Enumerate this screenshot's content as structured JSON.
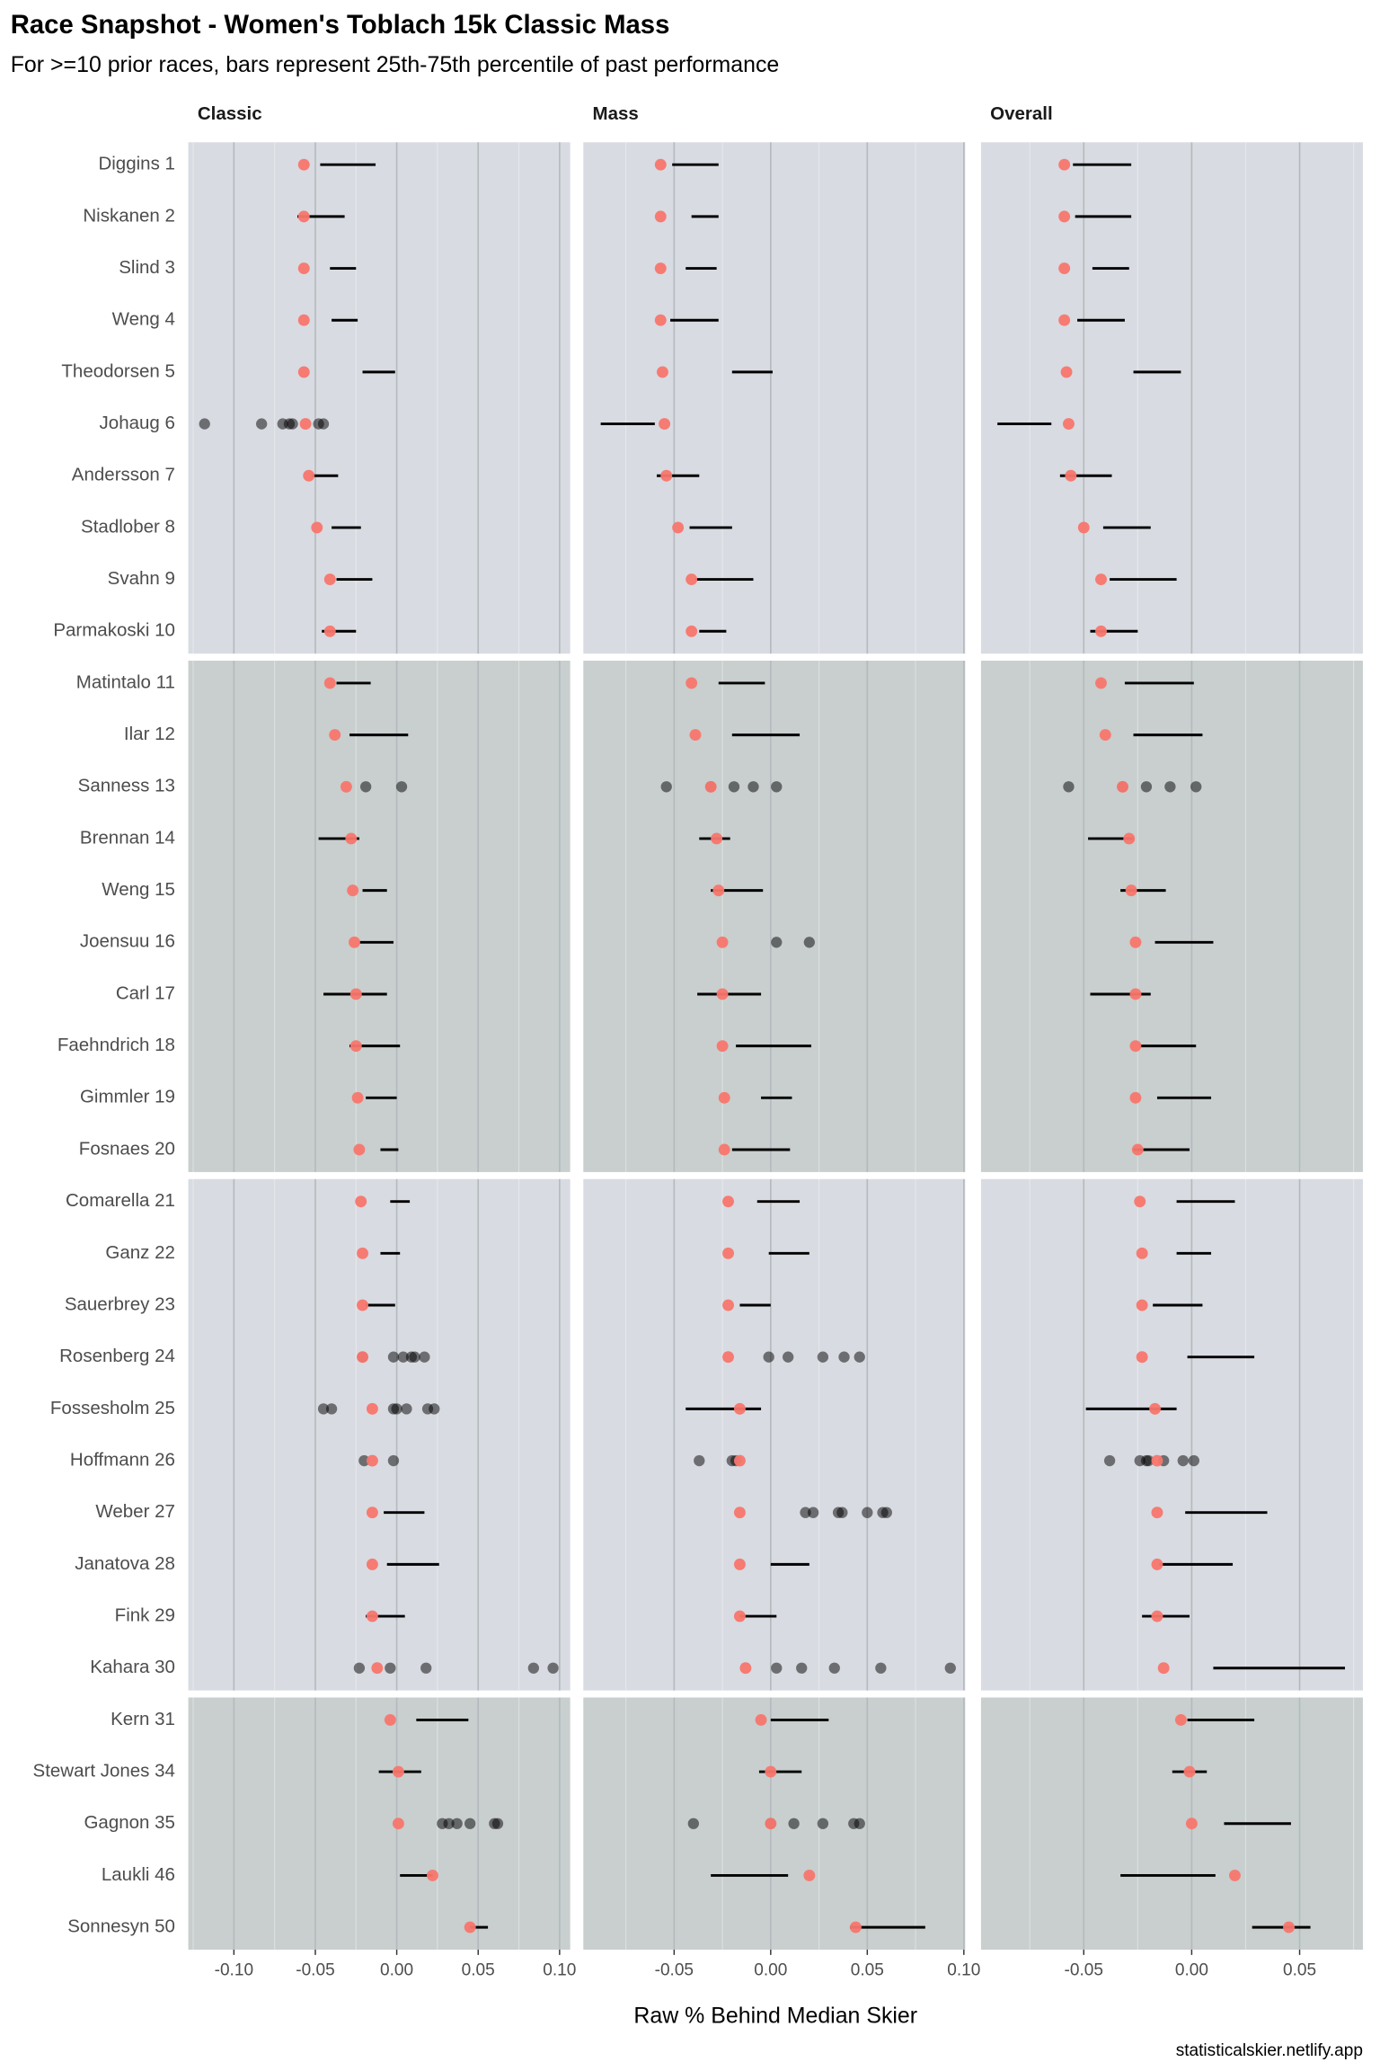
{
  "chart_data": {
    "type": "faceted_range_dot",
    "title": "Race Snapshot -  Women's Toblach 15k Classic Mass",
    "subtitle": "For >=10 prior races, bars represent 25th-75th percentile of past performance",
    "x_label": "Raw % Behind Median Skier",
    "caption": "statisticalskier.netlify.app",
    "point_color": "#f8766d",
    "past_color": "#000000",
    "range_color": "#000000",
    "grid": true,
    "categories": [
      "Diggins 1",
      "Niskanen 2",
      "Slind 3",
      "Weng 4",
      "Theodorsen 5",
      "Johaug 6",
      "Andersson 7",
      "Stadlober 8",
      "Svahn 9",
      "Parmakoski 10",
      "Matintalo 11",
      "Ilar 12",
      "Sanness 13",
      "Brennan 14",
      "Weng 15",
      "Joensuu 16",
      "Carl 17",
      "Faehndrich 18",
      "Gimmler 19",
      "Fosnaes 20",
      "Comarella 21",
      "Ganz 22",
      "Sauerbrey 23",
      "Rosenberg 24",
      "Fossesholm 25",
      "Hoffmann 26",
      "Weber 27",
      "Janatova 28",
      "Fink 29",
      "Kahara 30",
      "Kern 31",
      "Stewart Jones 34",
      "Gagnon 35",
      "Laukli 46",
      "Sonnesyn 50"
    ],
    "facets": [
      {
        "title": "Classic",
        "xlim": [
          -0.128,
          0.1065
        ],
        "xticks": [
          {
            "value": -0.1,
            "label": "-0.10"
          },
          -0.05,
          {
            "value": 0,
            "label": "0.00"
          },
          0.05,
          {
            "value": 0.1,
            "label": "0.10"
          }
        ],
        "values": [
          -0.057,
          -0.057,
          -0.057,
          -0.057,
          -0.057,
          -0.056,
          -0.054,
          -0.049,
          -0.041,
          -0.041,
          -0.041,
          -0.038,
          -0.031,
          -0.028,
          -0.027,
          -0.026,
          -0.025,
          -0.025,
          -0.024,
          -0.023,
          -0.022,
          -0.021,
          -0.021,
          -0.021,
          -0.015,
          -0.015,
          -0.015,
          -0.015,
          -0.015,
          -0.012,
          -0.004,
          0.001,
          0.001,
          0.022,
          0.045
        ],
        "ranges": [
          [
            -0.047,
            -0.013
          ],
          [
            -0.061,
            -0.032
          ],
          [
            -0.041,
            -0.025
          ],
          [
            -0.04,
            -0.024
          ],
          [
            -0.021,
            -0.001
          ],
          null,
          [
            -0.052,
            -0.036
          ],
          [
            -0.04,
            -0.022
          ],
          [
            -0.037,
            -0.015
          ],
          [
            -0.046,
            -0.025
          ],
          [
            -0.037,
            -0.016
          ],
          [
            -0.029,
            0.007
          ],
          null,
          [
            -0.048,
            -0.023
          ],
          [
            -0.021,
            -0.006
          ],
          [
            -0.023,
            -0.002
          ],
          [
            -0.045,
            -0.006
          ],
          [
            -0.029,
            0.002
          ],
          [
            -0.019,
            0.0
          ],
          [
            -0.01,
            0.001
          ],
          [
            -0.004,
            0.008
          ],
          [
            -0.01,
            0.002
          ],
          [
            -0.019,
            -0.001
          ],
          null,
          null,
          null,
          [
            -0.008,
            0.017
          ],
          [
            -0.006,
            0.026
          ],
          [
            -0.019,
            0.005
          ],
          null,
          [
            0.012,
            0.044
          ],
          [
            -0.011,
            0.015
          ],
          null,
          [
            0.002,
            0.022
          ],
          [
            0.045,
            0.056
          ]
        ],
        "past": [
          null,
          null,
          null,
          null,
          null,
          [
            -0.118,
            -0.083,
            -0.07,
            -0.066,
            -0.064,
            -0.048,
            -0.045
          ],
          null,
          null,
          null,
          null,
          null,
          null,
          [
            -0.019,
            0.003
          ],
          null,
          null,
          null,
          null,
          null,
          null,
          null,
          null,
          null,
          null,
          [
            -0.021,
            -0.002,
            0.004,
            0.009,
            0.011,
            0.017
          ],
          [
            -0.045,
            -0.04,
            -0.002,
            0.0,
            0.006,
            0.019,
            0.023
          ],
          [
            -0.02,
            -0.002
          ],
          null,
          null,
          null,
          [
            -0.023,
            -0.004,
            0.018,
            0.084,
            0.096
          ],
          null,
          null,
          [
            0.028,
            0.032,
            0.037,
            0.045,
            0.06,
            0.062
          ],
          null,
          null
        ]
      },
      {
        "title": "Mass",
        "xlim": [
          -0.097,
          0.1007
        ],
        "xticks": [
          -0.05,
          {
            "value": 0,
            "label": "0.00"
          },
          0.05,
          {
            "value": 0.1,
            "label": "0.10"
          }
        ],
        "values": [
          -0.057,
          -0.057,
          -0.057,
          -0.057,
          -0.056,
          -0.055,
          -0.054,
          -0.048,
          -0.041,
          -0.041,
          -0.041,
          -0.039,
          -0.031,
          -0.028,
          -0.027,
          -0.025,
          -0.025,
          -0.025,
          -0.024,
          -0.024,
          -0.022,
          -0.022,
          -0.022,
          -0.022,
          -0.016,
          -0.016,
          -0.016,
          -0.016,
          -0.016,
          -0.013,
          -0.005,
          0.0,
          0.0,
          0.02,
          0.044
        ],
        "ranges": [
          [
            -0.051,
            -0.027
          ],
          [
            -0.041,
            -0.027
          ],
          [
            -0.044,
            -0.028
          ],
          [
            -0.052,
            -0.027
          ],
          [
            -0.02,
            0.001
          ],
          [
            -0.088,
            -0.06
          ],
          [
            -0.059,
            -0.037
          ],
          [
            -0.042,
            -0.02
          ],
          [
            -0.039,
            -0.009
          ],
          [
            -0.037,
            -0.023
          ],
          [
            -0.027,
            -0.003
          ],
          [
            -0.02,
            0.015
          ],
          null,
          [
            -0.037,
            -0.021
          ],
          [
            -0.031,
            -0.004
          ],
          null,
          [
            -0.038,
            -0.005
          ],
          [
            -0.018,
            0.021
          ],
          [
            -0.005,
            0.011
          ],
          [
            -0.02,
            0.01
          ],
          [
            -0.007,
            0.015
          ],
          [
            -0.001,
            0.02
          ],
          [
            -0.016,
            0.0
          ],
          null,
          [
            -0.044,
            -0.005
          ],
          null,
          null,
          [
            0.0,
            0.02
          ],
          [
            -0.016,
            0.003
          ],
          null,
          [
            0.0,
            0.03
          ],
          [
            -0.006,
            0.016
          ],
          null,
          [
            -0.031,
            0.009
          ],
          [
            0.041,
            0.08
          ]
        ],
        "past": [
          null,
          null,
          null,
          null,
          null,
          null,
          null,
          null,
          null,
          null,
          null,
          null,
          [
            -0.054,
            -0.031,
            -0.019,
            -0.009,
            0.003
          ],
          null,
          null,
          [
            0.003,
            0.02
          ],
          null,
          null,
          null,
          null,
          null,
          null,
          null,
          [
            -0.001,
            0.009,
            0.027,
            0.038,
            0.046
          ],
          null,
          [
            -0.037,
            -0.02,
            -0.018
          ],
          [
            0.018,
            0.022,
            0.035,
            0.037,
            0.05,
            0.058,
            0.06
          ],
          null,
          null,
          [
            0.003,
            0.016,
            0.033,
            0.057,
            0.093
          ],
          null,
          null,
          [
            -0.04,
            0.0,
            0.012,
            0.027,
            0.043,
            0.046
          ],
          null,
          null
        ]
      },
      {
        "title": "Overall",
        "xlim": [
          -0.0976,
          0.0793
        ],
        "xticks": [
          -0.05,
          {
            "value": 0,
            "label": "0.00"
          },
          0.05
        ],
        "values": [
          -0.059,
          -0.059,
          -0.059,
          -0.059,
          -0.058,
          -0.057,
          -0.056,
          -0.05,
          -0.042,
          -0.042,
          -0.042,
          -0.04,
          -0.032,
          -0.029,
          -0.028,
          -0.026,
          -0.026,
          -0.026,
          -0.026,
          -0.025,
          -0.024,
          -0.023,
          -0.023,
          -0.023,
          -0.017,
          -0.016,
          -0.016,
          -0.016,
          -0.016,
          -0.013,
          -0.005,
          -0.001,
          0.0,
          0.02,
          0.045
        ],
        "ranges": [
          [
            -0.055,
            -0.028
          ],
          [
            -0.054,
            -0.028
          ],
          [
            -0.046,
            -0.029
          ],
          [
            -0.053,
            -0.031
          ],
          [
            -0.027,
            -0.005
          ],
          [
            -0.09,
            -0.065
          ],
          [
            -0.061,
            -0.037
          ],
          [
            -0.041,
            -0.019
          ],
          [
            -0.038,
            -0.007
          ],
          [
            -0.047,
            -0.025
          ],
          [
            -0.031,
            0.001
          ],
          [
            -0.027,
            0.005
          ],
          null,
          [
            -0.048,
            -0.027
          ],
          [
            -0.033,
            -0.012
          ],
          [
            -0.017,
            0.01
          ],
          [
            -0.047,
            -0.019
          ],
          [
            -0.024,
            0.002
          ],
          [
            -0.016,
            0.009
          ],
          [
            -0.027,
            -0.001
          ],
          [
            -0.007,
            0.02
          ],
          [
            -0.007,
            0.009
          ],
          [
            -0.018,
            0.005
          ],
          [
            -0.002,
            0.029
          ],
          [
            -0.049,
            -0.007
          ],
          null,
          [
            -0.003,
            0.035
          ],
          [
            -0.015,
            0.019
          ],
          [
            -0.023,
            -0.001
          ],
          [
            0.01,
            0.071
          ],
          [
            -0.002,
            0.029
          ],
          [
            -0.009,
            0.007
          ],
          [
            0.015,
            0.046
          ],
          [
            -0.033,
            0.011
          ],
          [
            0.028,
            0.055
          ]
        ],
        "past": [
          null,
          null,
          null,
          null,
          null,
          null,
          null,
          null,
          null,
          null,
          null,
          null,
          [
            -0.057,
            -0.032,
            -0.021,
            -0.01,
            0.002
          ],
          null,
          null,
          null,
          null,
          null,
          null,
          null,
          null,
          null,
          null,
          null,
          null,
          [
            -0.038,
            -0.024,
            -0.021,
            -0.02,
            -0.013,
            -0.004,
            0.001
          ],
          null,
          null,
          null,
          null,
          null,
          null,
          null,
          null,
          null
        ]
      }
    ]
  }
}
